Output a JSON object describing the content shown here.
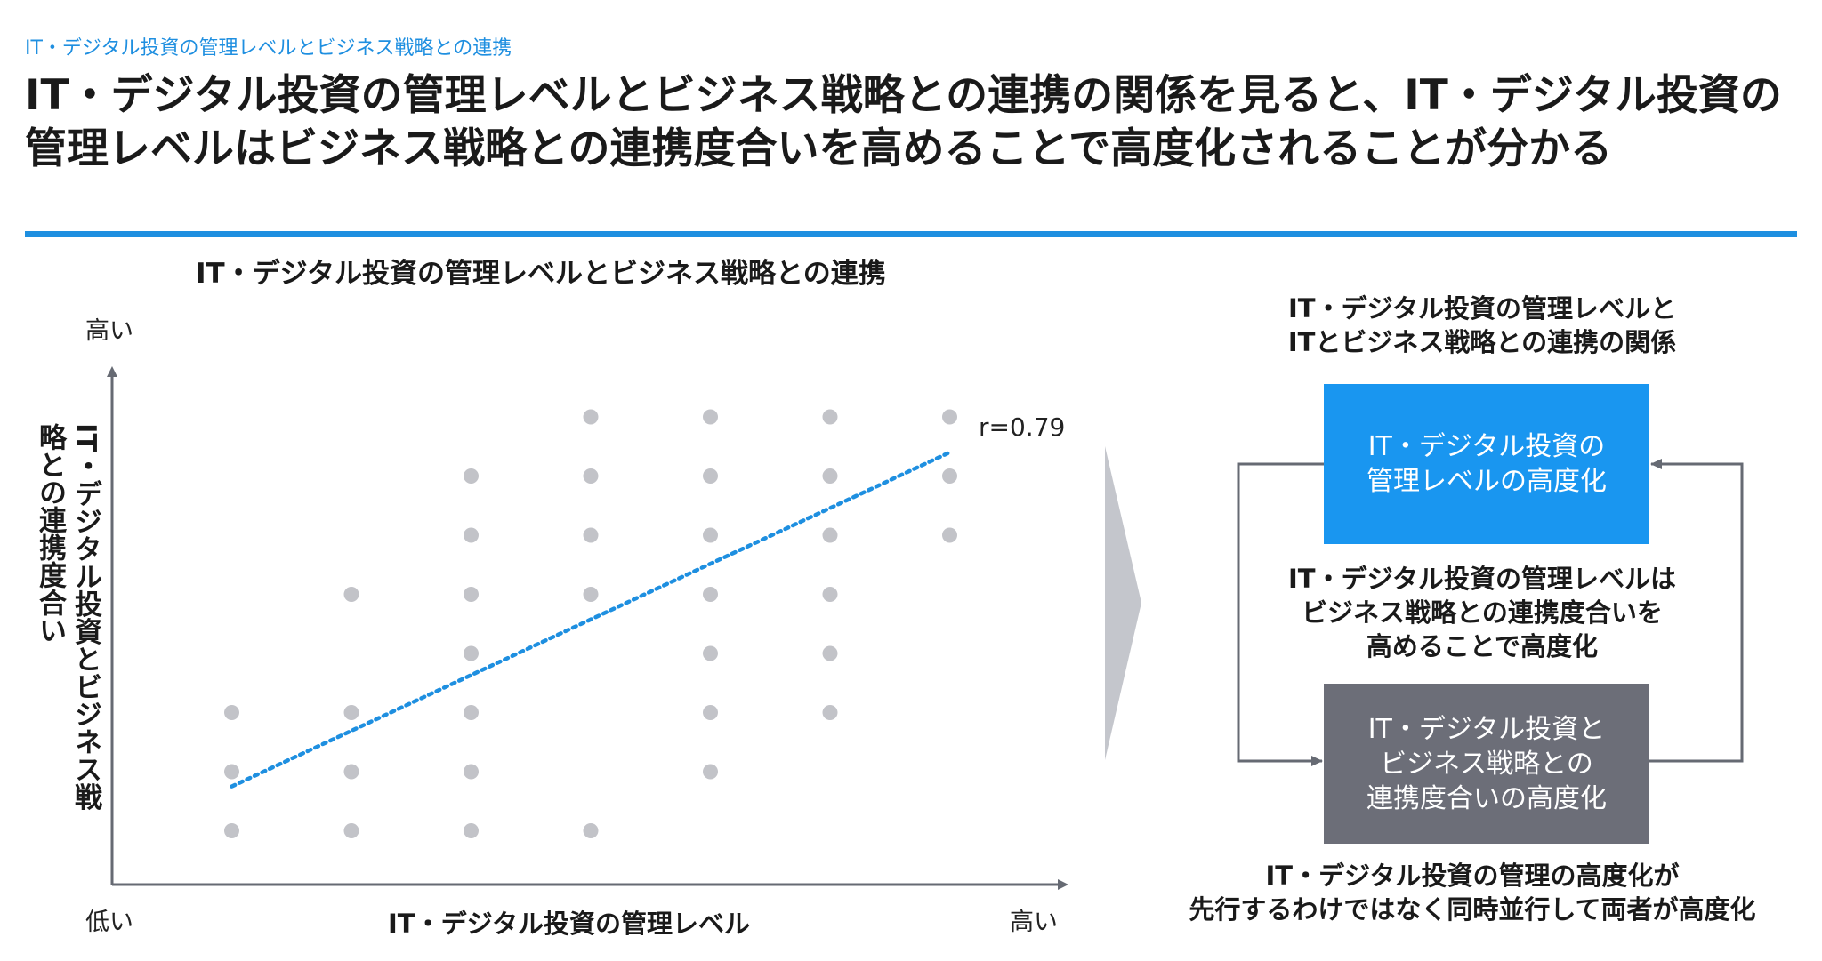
{
  "header": {
    "breadcrumb": "IT・デジタル投資の管理レベルとビジネス戦略との連携",
    "title": "IT・デジタル投資の管理レベルとビジネス戦略との連携の関係を見ると、IT・デジタル投資の管理レベルはビジネス戦略との連携度合いを高めることで高度化されることが分かる"
  },
  "colors": {
    "accent": "#1e8fe0",
    "trend_line": "#1e8fe0",
    "points": "#c2c3c8",
    "axis": "#666a73",
    "box_blue": "#1996f0",
    "box_gray": "#6c6e78"
  },
  "chart_data": {
    "type": "scatter",
    "title": "IT・デジタル投資の管理レベルとビジネス戦略との連携",
    "xlabel": "IT・デジタル投資の管理レベル",
    "ylabel": "IT・デジタル投資とビジネス戦略との連携度合い",
    "x_low_label": "低い",
    "x_high_label": "高い",
    "y_high_label": "高い",
    "xlim": [
      0,
      7
    ],
    "ylim": [
      0,
      8
    ],
    "grid": false,
    "points": [
      [
        1,
        1
      ],
      [
        1,
        2
      ],
      [
        1,
        3
      ],
      [
        2,
        1
      ],
      [
        2,
        2
      ],
      [
        2,
        3
      ],
      [
        2,
        5
      ],
      [
        3,
        1
      ],
      [
        3,
        2
      ],
      [
        3,
        3
      ],
      [
        3,
        4
      ],
      [
        3,
        5
      ],
      [
        3,
        6
      ],
      [
        3,
        7
      ],
      [
        4,
        1
      ],
      [
        4,
        5
      ],
      [
        4,
        6
      ],
      [
        4,
        7
      ],
      [
        4,
        8
      ],
      [
        5,
        2
      ],
      [
        5,
        3
      ],
      [
        5,
        4
      ],
      [
        5,
        5
      ],
      [
        5,
        6
      ],
      [
        5,
        7
      ],
      [
        5,
        8
      ],
      [
        6,
        3
      ],
      [
        6,
        4
      ],
      [
        6,
        5
      ],
      [
        6,
        6
      ],
      [
        6,
        7
      ],
      [
        6,
        8
      ],
      [
        7,
        6
      ],
      [
        7,
        7
      ],
      [
        7,
        8
      ]
    ],
    "trendline": {
      "x": [
        1,
        7
      ],
      "y": [
        1.75,
        7.4
      ]
    },
    "annotation": "r=0.79"
  },
  "right_panel": {
    "heading": "IT・デジタル投資の管理レベルと\nITとビジネス戦略との連携の関係",
    "box_top": "IT・デジタル投資の\n管理レベルの高度化",
    "middle_text": "IT・デジタル投資の管理レベルは\nビジネス戦略との連携度合いを\n高めることで高度化",
    "box_bottom": "IT・デジタル投資と\nビジネス戦略との\n連携度合いの高度化",
    "bottom_text": "IT・デジタル投資の管理の高度化が\n先行するわけではなく同時並行して両者が高度化"
  }
}
